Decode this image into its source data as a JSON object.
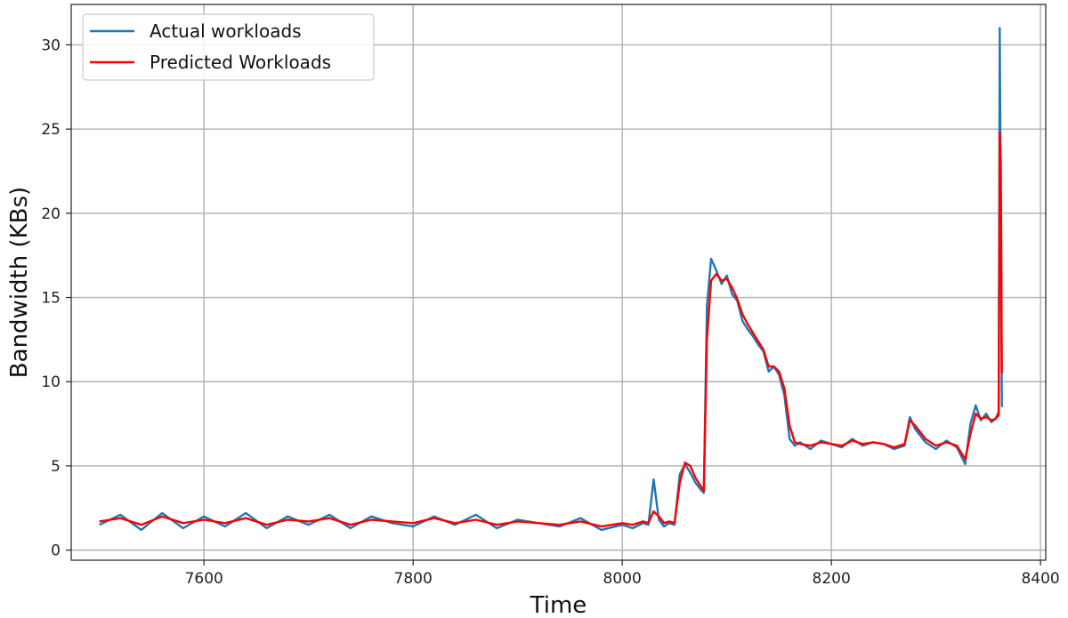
{
  "chart_data": {
    "type": "line",
    "title": "",
    "xlabel": "Time",
    "ylabel": "Bandwidth (KBs)",
    "xlim": [
      7473,
      8405
    ],
    "ylim": [
      -0.6,
      32.4
    ],
    "xticks": [
      7600,
      7800,
      8000,
      8200,
      8400
    ],
    "yticks": [
      0,
      5,
      10,
      15,
      20,
      25,
      30
    ],
    "grid": true,
    "legend_position": "top-left",
    "series": [
      {
        "name": "Actual workloads",
        "color": "#1f77b4",
        "x": [
          7500,
          7520,
          7540,
          7560,
          7580,
          7600,
          7620,
          7640,
          7660,
          7680,
          7700,
          7720,
          7740,
          7760,
          7780,
          7800,
          7820,
          7840,
          7860,
          7880,
          7900,
          7920,
          7940,
          7960,
          7980,
          8000,
          8010,
          8020,
          8025,
          8030,
          8035,
          8040,
          8045,
          8050,
          8055,
          8060,
          8065,
          8070,
          8075,
          8078,
          8081,
          8085,
          8090,
          8095,
          8100,
          8105,
          8110,
          8115,
          8120,
          8125,
          8130,
          8135,
          8140,
          8145,
          8150,
          8155,
          8160,
          8165,
          8170,
          8180,
          8190,
          8200,
          8210,
          8220,
          8230,
          8240,
          8250,
          8260,
          8270,
          8275,
          8280,
          8290,
          8300,
          8310,
          8320,
          8328,
          8333,
          8338,
          8343,
          8348,
          8353,
          8357,
          8360,
          8361,
          8362,
          8363
        ],
        "y": [
          1.5,
          2.1,
          1.2,
          2.2,
          1.3,
          2.0,
          1.4,
          2.2,
          1.3,
          2.0,
          1.5,
          2.1,
          1.3,
          2.0,
          1.6,
          1.4,
          2.0,
          1.5,
          2.1,
          1.3,
          1.8,
          1.6,
          1.4,
          1.9,
          1.2,
          1.5,
          1.3,
          1.6,
          1.5,
          4.2,
          1.8,
          1.4,
          1.6,
          1.5,
          4.5,
          5.1,
          4.6,
          4.0,
          3.6,
          3.4,
          14.5,
          17.3,
          16.6,
          15.8,
          16.3,
          15.2,
          14.8,
          13.6,
          13.1,
          12.7,
          12.2,
          11.8,
          10.6,
          10.9,
          10.4,
          9.2,
          6.6,
          6.2,
          6.4,
          6.0,
          6.5,
          6.3,
          6.1,
          6.6,
          6.2,
          6.4,
          6.3,
          6.0,
          6.2,
          7.9,
          7.2,
          6.4,
          6.0,
          6.5,
          6.1,
          5.1,
          7.5,
          8.6,
          7.7,
          8.1,
          7.6,
          7.8,
          8.2,
          31.0,
          20.0,
          8.5
        ]
      },
      {
        "name": "Predicted Workloads",
        "color": "#ff0000",
        "x": [
          7500,
          7520,
          7540,
          7560,
          7580,
          7600,
          7620,
          7640,
          7660,
          7680,
          7700,
          7720,
          7740,
          7760,
          7780,
          7800,
          7820,
          7840,
          7860,
          7880,
          7900,
          7920,
          7940,
          7960,
          7980,
          8000,
          8010,
          8020,
          8025,
          8030,
          8035,
          8040,
          8045,
          8050,
          8055,
          8060,
          8065,
          8070,
          8075,
          8078,
          8081,
          8085,
          8090,
          8095,
          8100,
          8105,
          8110,
          8115,
          8120,
          8125,
          8130,
          8135,
          8140,
          8145,
          8150,
          8155,
          8160,
          8165,
          8170,
          8180,
          8190,
          8200,
          8210,
          8220,
          8230,
          8240,
          8250,
          8260,
          8270,
          8275,
          8280,
          8290,
          8300,
          8310,
          8320,
          8328,
          8333,
          8338,
          8343,
          8348,
          8353,
          8357,
          8360,
          8361,
          8362,
          8363
        ],
        "y": [
          1.7,
          1.9,
          1.5,
          2.0,
          1.6,
          1.8,
          1.6,
          1.9,
          1.5,
          1.8,
          1.7,
          1.9,
          1.5,
          1.8,
          1.7,
          1.6,
          1.9,
          1.6,
          1.8,
          1.5,
          1.7,
          1.6,
          1.5,
          1.7,
          1.4,
          1.6,
          1.5,
          1.7,
          1.6,
          2.3,
          2.0,
          1.6,
          1.7,
          1.6,
          4.0,
          5.2,
          5.0,
          4.3,
          3.8,
          3.5,
          12.5,
          16.0,
          16.4,
          16.0,
          16.1,
          15.6,
          14.9,
          14.0,
          13.4,
          12.9,
          12.4,
          11.9,
          10.9,
          10.9,
          10.6,
          9.6,
          7.4,
          6.4,
          6.3,
          6.2,
          6.4,
          6.3,
          6.2,
          6.5,
          6.3,
          6.4,
          6.3,
          6.1,
          6.3,
          7.7,
          7.4,
          6.6,
          6.2,
          6.4,
          6.2,
          5.4,
          6.9,
          8.1,
          7.8,
          7.9,
          7.7,
          7.8,
          8.0,
          24.8,
          23.0,
          10.5
        ]
      }
    ]
  }
}
